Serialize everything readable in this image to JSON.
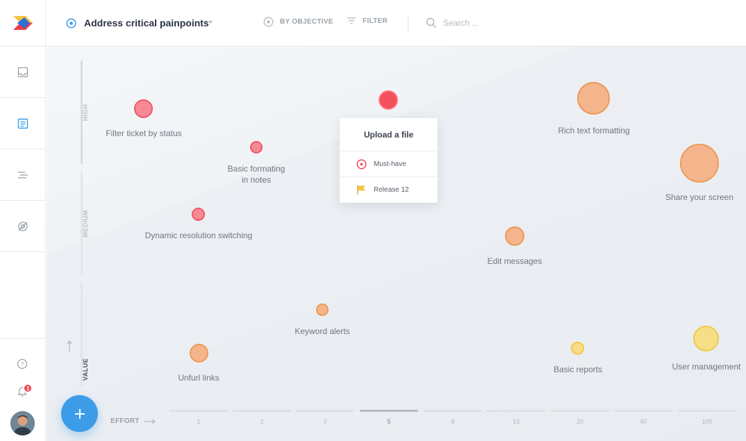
{
  "header": {
    "title": "Address critical painpoints",
    "by_objective": "BY OBJECTIVE",
    "filter": "FILTER",
    "search_placeholder": "Search ..."
  },
  "sidebar": {
    "notifications_count": "3"
  },
  "axes": {
    "y_levels": [
      "HIGH",
      "MEDIUM"
    ],
    "y_title": "VALUE",
    "x_title": "EFFORT",
    "x_ticks": [
      "1",
      "2",
      "3",
      "5",
      "8",
      "13",
      "20",
      "40",
      "100"
    ],
    "x_active_tick": "5"
  },
  "ideas": [
    {
      "label": "Filter ticket by status",
      "color": "red"
    },
    {
      "label": "Basic formating in notes",
      "color": "red"
    },
    {
      "label": "Dynamic resolution switching",
      "color": "red"
    },
    {
      "label": "Upload a file",
      "color": "red"
    },
    {
      "label": "Rich text formatting",
      "color": "orange"
    },
    {
      "label": "Share your screen",
      "color": "orange"
    },
    {
      "label": "Edit messages",
      "color": "orange"
    },
    {
      "label": "Keyword alerts",
      "color": "orange"
    },
    {
      "label": "Unfurl links",
      "color": "orange"
    },
    {
      "label": "Basic reports",
      "color": "yellow"
    },
    {
      "label": "User management",
      "color": "yellow"
    }
  ],
  "popup": {
    "title": "Upload a file",
    "priority": "Must-have",
    "release": "Release 12"
  },
  "colors": {
    "accent": "#3d9ce8",
    "red": "#ef5965",
    "orange": "#ee9957",
    "yellow": "#efc94a"
  }
}
